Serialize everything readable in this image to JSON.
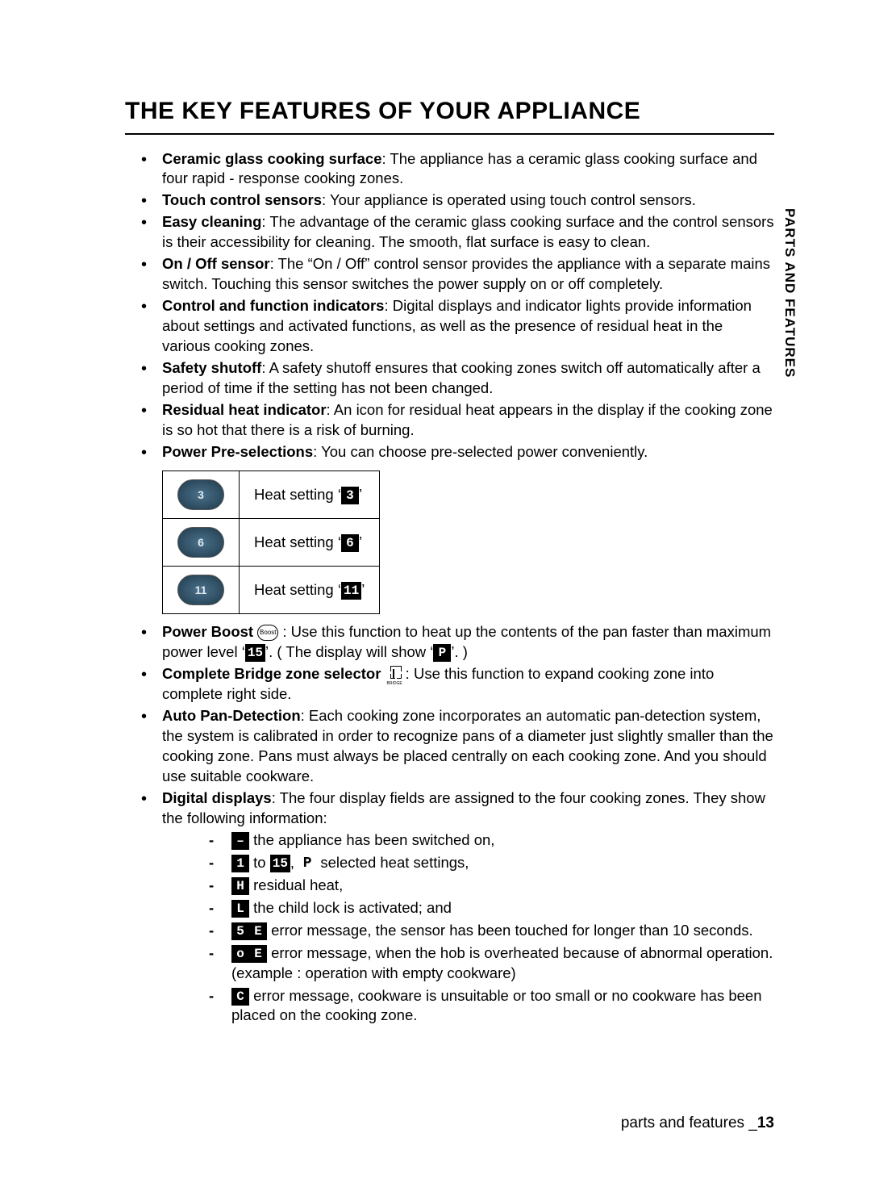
{
  "title": "THE KEY FEATURES OF YOUR APPLIANCE",
  "side_tab": "PARTS AND FEATURES",
  "footer": {
    "section": "parts and features _",
    "page": "13"
  },
  "features": {
    "ceramic": {
      "label": "Ceramic glass cooking surface",
      "text": ": The appliance has a ceramic glass cooking surface and four rapid - response cooking zones."
    },
    "touch": {
      "label": "Touch control sensors",
      "text": ": Your appliance is operated using touch control sensors."
    },
    "easy": {
      "label": "Easy cleaning",
      "text": ": The advantage of the ceramic glass cooking surface and the control sensors is their accessibility for cleaning. The smooth, flat surface is easy to clean."
    },
    "onoff": {
      "label": "On / Off sensor",
      "text": ": The “On / Off” control sensor provides the appliance with a separate mains switch. Touching this sensor switches the power supply on or off completely."
    },
    "ctrl": {
      "label": "Control and function indicators",
      "text": ": Digital displays and indicator lights provide information about settings and activated functions, as well as the presence of residual heat in the various cooking zones."
    },
    "safety": {
      "label": "Safety shutoff",
      "text": ": A safety shutoff ensures that cooking zones switch off automatically after a period of time if the setting has not been changed."
    },
    "residual": {
      "label": "Residual heat indicator",
      "text": ": An icon for residual heat appears in the display if the cooking zone is so hot that there is a risk of burning."
    },
    "prepower": {
      "label": "Power Pre-selections",
      "text": ": You can choose pre-selected power conveniently."
    },
    "boost_label": "Power Boost",
    "boost_pre": " : Use this function to heat up the contents of the pan faster than maximum power level ‘",
    "boost_mid": "’. ( The display will show ‘",
    "boost_end": "’. )",
    "bridge_label": "Complete Bridge zone selector",
    "bridge_text": " : Use this function to expand cooking zone into complete right side.",
    "autopan": {
      "label": "Auto Pan-Detection",
      "text": ": Each cooking zone incorporates an automatic pan-detection system, the system is calibrated in order to recognize pans of a diameter just slightly smaller than the cooking zone. Pans must always be placed centrally on each cooking zone. And you should use suitable cookware."
    },
    "digital": {
      "label": "Digital displays",
      "text": ": The four display fields are assigned to the four cooking zones. They show the following information:"
    }
  },
  "table": {
    "r1": {
      "btn": "3",
      "pre": "Heat setting ‘",
      "seg": "3",
      "post": "’"
    },
    "r2": {
      "btn": "6",
      "pre": "Heat setting ‘",
      "seg": "6",
      "post": "’"
    },
    "r3": {
      "btn": "11",
      "pre": "Heat setting ‘",
      "seg": "11",
      "post": "’"
    }
  },
  "seg": {
    "max": "15",
    "P": "P",
    "dash": "–",
    "one": "1",
    "H": "H",
    "L": "L",
    "S": "5",
    "E": "E",
    "o": "o",
    "C": "C"
  },
  "boost_icon_label": "Boost",
  "bridge_label_small": "BRIDGE",
  "sub": {
    "on": " the appliance has been switched on,",
    "sel_mid": " to ",
    "sel_sep": ", ",
    "sel_end": " selected heat settings,",
    "res": " residual heat,",
    "lock": " the child lock is activated; and",
    "se": " error message, the sensor has been touched for longer than 10 seconds.",
    "oe": " error message, when the hob is overheated because of abnormal operation. (example : operation with empty cookware)",
    "c": " error message, cookware is unsuitable or too small or no cookware has been placed on the cooking zone."
  }
}
